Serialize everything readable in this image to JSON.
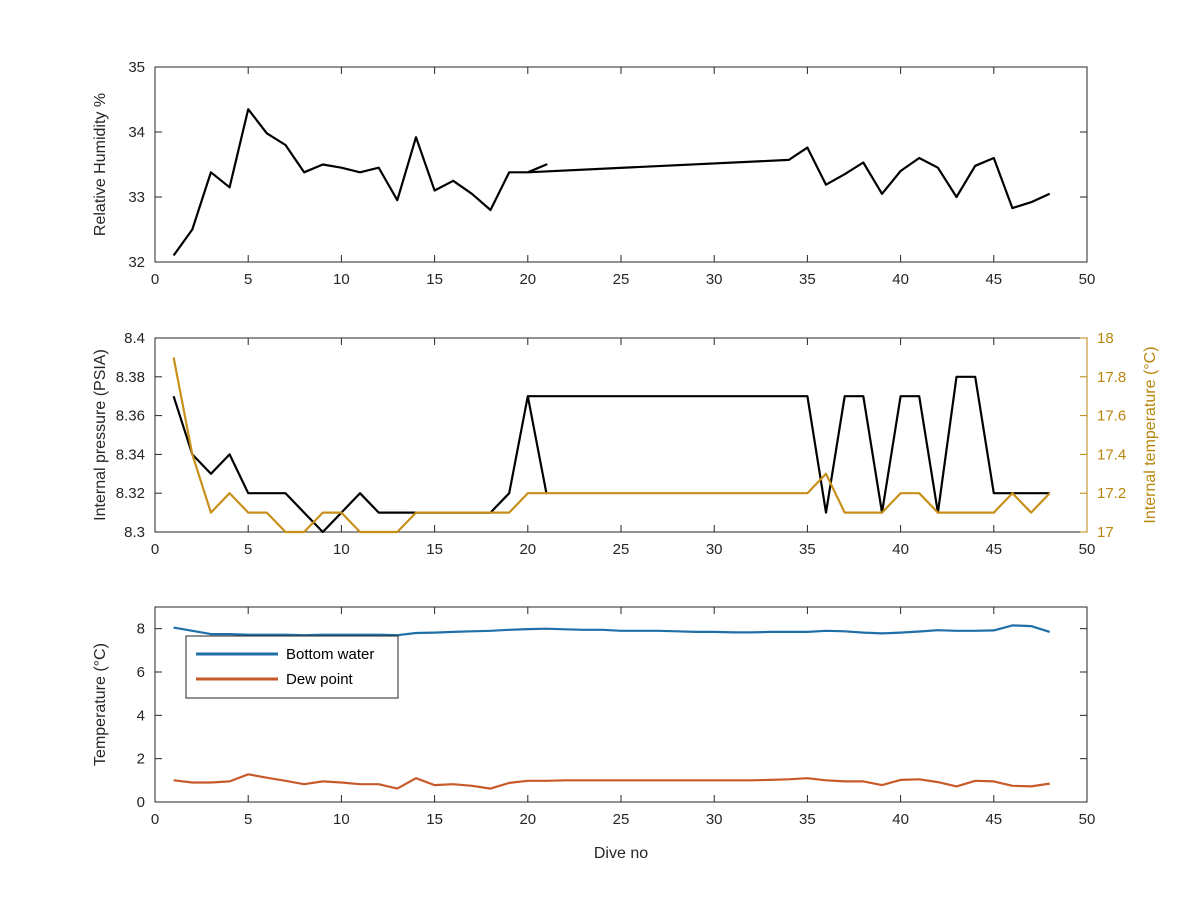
{
  "chart_data": [
    {
      "type": "line",
      "xlabel": "",
      "ylabel": "Relative Humidity %",
      "xlim": [
        0,
        50
      ],
      "ylim": [
        32,
        35
      ],
      "xticks": [
        0,
        5,
        10,
        15,
        20,
        25,
        30,
        35,
        40,
        45,
        50
      ],
      "yticks": [
        32,
        33,
        34,
        35
      ],
      "grid": false,
      "series": [
        {
          "color": "#000000",
          "x": [
            1,
            2,
            3,
            4,
            5,
            6,
            7,
            8,
            9,
            10,
            11,
            12,
            13,
            14,
            15,
            16,
            17,
            18,
            19,
            20,
            21,
            20,
            34,
            35,
            36,
            37,
            38,
            39,
            40,
            41,
            42,
            43,
            44,
            45,
            46,
            47,
            48
          ],
          "values": [
            32.1,
            32.5,
            33.38,
            33.15,
            34.35,
            33.98,
            33.8,
            33.38,
            33.5,
            33.45,
            33.38,
            33.45,
            32.95,
            33.92,
            33.1,
            33.25,
            33.05,
            32.8,
            33.38,
            33.38,
            33.5,
            33.38,
            33.57,
            33.76,
            33.19,
            33.35,
            33.53,
            33.05,
            33.4,
            33.6,
            33.45,
            33.0,
            33.48,
            33.6,
            32.83,
            32.92,
            33.05
          ]
        }
      ]
    },
    {
      "type": "line",
      "xlabel": "",
      "ylabel": "Internal pressure (PSIA)",
      "ylabel_right": "Internal temperature (°C)",
      "xlim": [
        0,
        50
      ],
      "ylim": [
        8.3,
        8.4
      ],
      "ylim_right": [
        17,
        18
      ],
      "xticks": [
        0,
        5,
        10,
        15,
        20,
        25,
        30,
        35,
        40,
        45,
        50
      ],
      "yticks": [
        8.3,
        8.32,
        8.34,
        8.36,
        8.38,
        8.4
      ],
      "yticks_right": [
        17,
        17.2,
        17.4,
        17.6,
        17.8,
        18
      ],
      "ytick_labels": [
        "8.3",
        "8.32",
        "8.34",
        "8.36",
        "8.38",
        "8.4"
      ],
      "ytick_labels_right": [
        "17",
        "17.2",
        "17.4",
        "17.6",
        "17.8",
        "18"
      ],
      "grid": false,
      "series": [
        {
          "axis": "left",
          "color": "#000000",
          "x": [
            1,
            2,
            3,
            4,
            5,
            6,
            7,
            8,
            9,
            10,
            11,
            12,
            13,
            14,
            15,
            16,
            17,
            18,
            19,
            20,
            21,
            20,
            35,
            36,
            37,
            38,
            39,
            40,
            41,
            42,
            43,
            44,
            45,
            46,
            47,
            48
          ],
          "values": [
            8.37,
            8.34,
            8.33,
            8.34,
            8.32,
            8.32,
            8.32,
            8.31,
            8.3,
            8.31,
            8.32,
            8.31,
            8.31,
            8.31,
            8.31,
            8.31,
            8.31,
            8.31,
            8.32,
            8.37,
            8.32,
            8.37,
            8.37,
            8.31,
            8.37,
            8.37,
            8.31,
            8.37,
            8.37,
            8.31,
            8.38,
            8.38,
            8.32,
            8.32,
            8.32,
            8.32
          ]
        },
        {
          "axis": "right",
          "color": "#c8901a",
          "x": [
            1,
            2,
            3,
            4,
            5,
            6,
            7,
            8,
            9,
            10,
            11,
            12,
            13,
            14,
            15,
            16,
            17,
            18,
            19,
            20,
            35,
            36,
            37,
            38,
            39,
            40,
            41,
            42,
            43,
            44,
            45,
            46,
            47,
            48
          ],
          "values": [
            17.9,
            17.4,
            17.1,
            17.2,
            17.1,
            17.1,
            17.0,
            17.0,
            17.1,
            17.1,
            17.0,
            17.0,
            17.0,
            17.1,
            17.1,
            17.1,
            17.1,
            17.1,
            17.1,
            17.2,
            17.2,
            17.3,
            17.1,
            17.1,
            17.1,
            17.2,
            17.2,
            17.1,
            17.1,
            17.1,
            17.1,
            17.2,
            17.1,
            17.2
          ]
        }
      ]
    },
    {
      "type": "line",
      "xlabel": "Dive no",
      "ylabel": "Temperature (°C)",
      "xlim": [
        0,
        50
      ],
      "ylim": [
        0,
        9
      ],
      "xticks": [
        0,
        5,
        10,
        15,
        20,
        25,
        30,
        35,
        40,
        45,
        50
      ],
      "yticks": [
        0,
        2,
        4,
        6,
        8
      ],
      "grid": false,
      "legend": "upper-left",
      "series": [
        {
          "name": "Bottom water",
          "color": "#1f6fa8",
          "x": [
            1,
            2,
            3,
            4,
            5,
            6,
            7,
            8,
            9,
            10,
            11,
            12,
            13,
            14,
            15,
            16,
            17,
            18,
            19,
            20,
            21,
            22,
            23,
            24,
            25,
            26,
            27,
            28,
            29,
            30,
            31,
            32,
            33,
            34,
            35,
            36,
            37,
            38,
            39,
            40,
            41,
            42,
            43,
            44,
            45,
            46,
            47,
            48
          ],
          "values": [
            8.05,
            7.9,
            7.75,
            7.75,
            7.72,
            7.72,
            7.72,
            7.7,
            7.72,
            7.72,
            7.72,
            7.72,
            7.7,
            7.8,
            7.82,
            7.85,
            7.88,
            7.9,
            7.95,
            7.98,
            8.0,
            7.97,
            7.95,
            7.95,
            7.9,
            7.9,
            7.9,
            7.88,
            7.85,
            7.85,
            7.83,
            7.83,
            7.85,
            7.85,
            7.85,
            7.9,
            7.88,
            7.82,
            7.78,
            7.82,
            7.87,
            7.93,
            7.9,
            7.9,
            7.92,
            8.15,
            8.12,
            7.85
          ]
        },
        {
          "name": "Dew point",
          "color": "#c85a2a",
          "x": [
            1,
            2,
            3,
            4,
            5,
            6,
            7,
            8,
            9,
            10,
            11,
            12,
            13,
            14,
            15,
            16,
            17,
            18,
            19,
            20,
            21,
            22,
            23,
            24,
            25,
            26,
            27,
            28,
            29,
            30,
            31,
            32,
            33,
            34,
            35,
            36,
            37,
            38,
            39,
            40,
            41,
            42,
            43,
            44,
            45,
            46,
            47,
            48
          ],
          "values": [
            1.0,
            0.9,
            0.9,
            0.95,
            1.28,
            1.12,
            0.98,
            0.82,
            0.95,
            0.9,
            0.82,
            0.82,
            0.62,
            1.1,
            0.78,
            0.82,
            0.75,
            0.62,
            0.88,
            0.98,
            0.98,
            1.0,
            1.0,
            1.0,
            1.0,
            1.0,
            1.0,
            1.0,
            1.0,
            1.0,
            1.0,
            1.0,
            1.02,
            1.05,
            1.1,
            1.0,
            0.95,
            0.95,
            0.78,
            1.02,
            1.05,
            0.92,
            0.72,
            0.98,
            0.95,
            0.75,
            0.72,
            0.85
          ]
        }
      ]
    }
  ]
}
